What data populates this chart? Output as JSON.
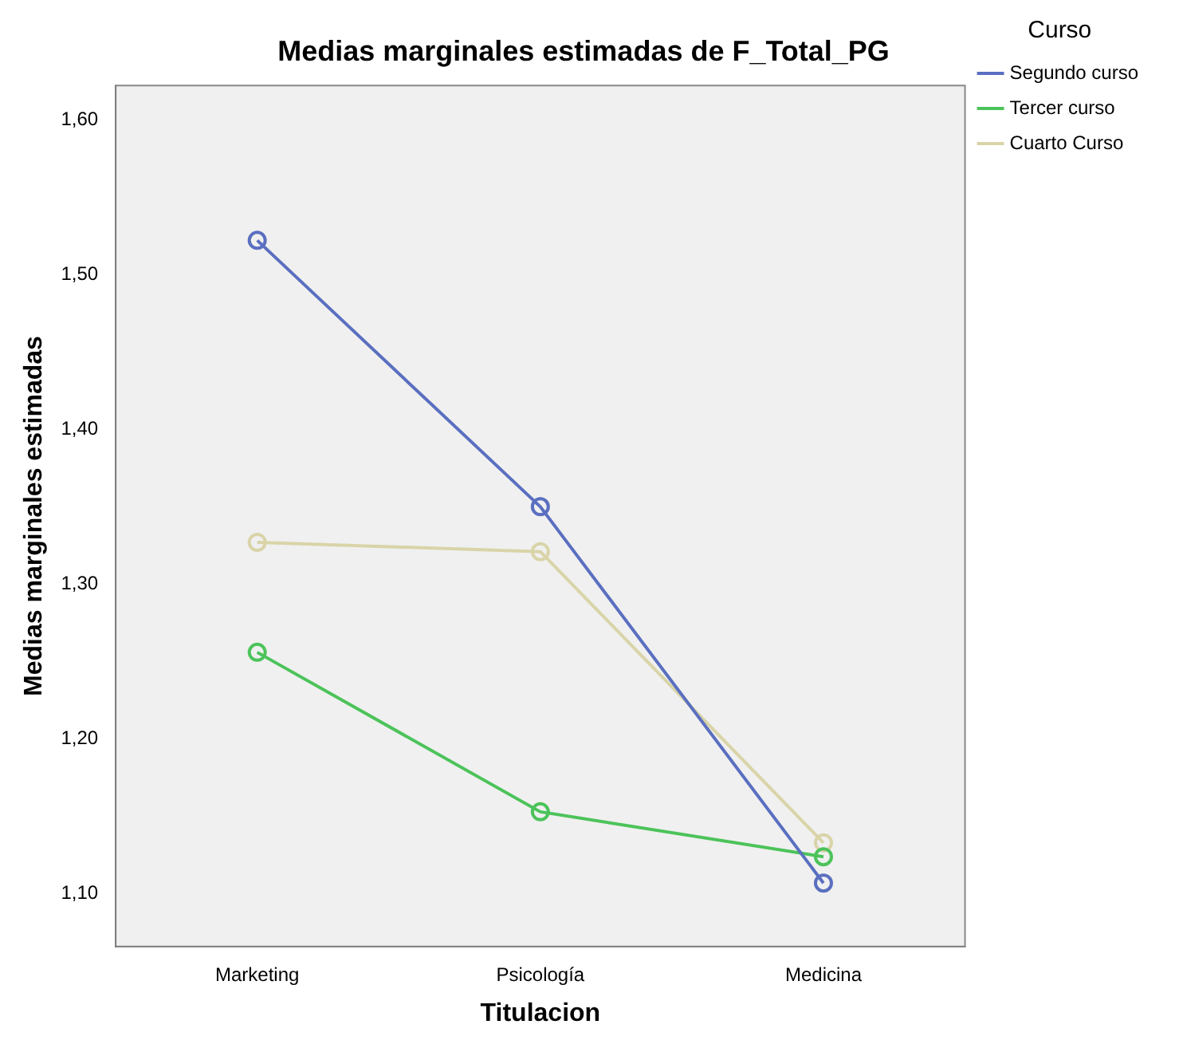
{
  "chart_data": {
    "type": "line",
    "title": "Medias marginales estimadas de F_Total_PG",
    "xlabel": "Titulacion",
    "ylabel": "Medias marginales estimadas",
    "legend_title": "Curso",
    "legend": "right",
    "marker": "circle",
    "grid": false,
    "categories": [
      "Marketing",
      "Psicología",
      "Medicina"
    ],
    "ylim": [
      1.066,
      1.622
    ],
    "yticks": [
      {
        "value": 1.1,
        "label": "1,10"
      },
      {
        "value": 1.2,
        "label": "1,20"
      },
      {
        "value": 1.3,
        "label": "1,30"
      },
      {
        "value": 1.4,
        "label": "1,40"
      },
      {
        "value": 1.5,
        "label": "1,50"
      },
      {
        "value": 1.6,
        "label": "1,60"
      }
    ],
    "series": [
      {
        "name": "Segundo curso",
        "color": "#5a6fc0",
        "values": [
          1.522,
          1.35,
          1.107
        ]
      },
      {
        "name": "Tercer curso",
        "color": "#4cc35a",
        "values": [
          1.256,
          1.153,
          1.124
        ]
      },
      {
        "name": "Cuarto Curso",
        "color": "#d9d4a8",
        "values": [
          1.327,
          1.321,
          1.133
        ]
      }
    ]
  }
}
